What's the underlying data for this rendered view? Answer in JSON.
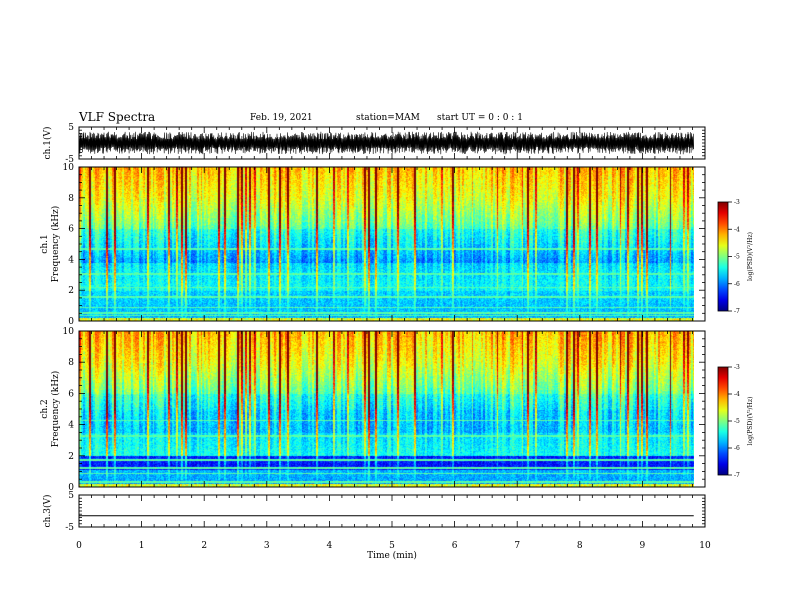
{
  "header": {
    "title": "VLF Spectra",
    "date": "Feb. 19, 2021",
    "station": "station=MAM",
    "start": "start UT =  0 : 0 : 1"
  },
  "chart_data": {
    "type": "heatmap",
    "x": {
      "label": "Time (min)",
      "range": [
        0,
        10
      ],
      "ticks": [
        0,
        1,
        2,
        3,
        4,
        5,
        6,
        7,
        8,
        9,
        10
      ],
      "data_end": 9.82
    },
    "panels": [
      {
        "id": "ch1-wave",
        "type": "line",
        "ylabel": "ch.1(V)",
        "yticks": [
          5,
          -5
        ],
        "ylim": [
          -5,
          5
        ],
        "signal": "noise-dense",
        "amplitude": 3.5
      },
      {
        "id": "ch1-spec",
        "type": "heatmap",
        "ylabel_lines": [
          "ch.1",
          "Frequency (kHz)"
        ],
        "yticks": [
          0,
          2,
          4,
          6,
          8,
          10
        ],
        "ylim": [
          0,
          10
        ]
      },
      {
        "id": "ch2-spec",
        "type": "heatmap",
        "ylabel_lines": [
          "ch.2",
          "Frequency (kHz)"
        ],
        "yticks": [
          0,
          2,
          4,
          6,
          8,
          10
        ],
        "ylim": [
          0,
          10
        ]
      },
      {
        "id": "ch3-wave",
        "type": "line",
        "ylabel": "ch.3(V)",
        "yticks": [
          5,
          -5
        ],
        "ylim": [
          -5,
          5
        ],
        "signal": "flat",
        "value": -1.5
      }
    ],
    "colorbar": {
      "label": "log(PSD)(V²/Hz)",
      "range": [
        -7,
        -3
      ],
      "ticks": [
        -3,
        -4,
        -5,
        -6,
        -7
      ],
      "colormap": "jet"
    }
  }
}
